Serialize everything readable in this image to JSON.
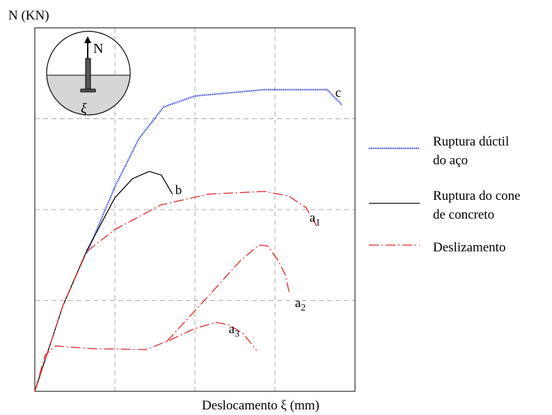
{
  "chart_data": {
    "type": "line",
    "ylabel": "N (KN)",
    "xlabel": "Deslocamento ξ (mm)",
    "xlim": [
      0,
      4
    ],
    "ylim": [
      0,
      4
    ],
    "xgrid": [
      1,
      2,
      3
    ],
    "ygrid": [
      1,
      2,
      3
    ],
    "inset_labels": [
      "N",
      "ξ"
    ],
    "series": [
      {
        "name": "Ruptura dúctil\ndo aço",
        "color": "#2a3cd8",
        "style": "wavy",
        "curves": [
          {
            "label": "c",
            "sub": null,
            "x": [
              0.65,
              1.0,
              1.3,
              1.61,
              2.0,
              2.87,
              3.65,
              3.84
            ],
            "y": [
              1.52,
              2.25,
              2.78,
              3.13,
              3.25,
              3.32,
              3.32,
              3.15
            ]
          }
        ]
      },
      {
        "name": "Ruptura do cone\nde concreto",
        "color": "#000000",
        "style": "solid",
        "curves": [
          {
            "label": "b",
            "sub": null,
            "x": [
              0,
              0.35,
              0.65,
              1.0,
              1.22,
              1.43,
              1.58,
              1.72
            ],
            "y": [
              0,
              0.94,
              1.55,
              2.13,
              2.34,
              2.42,
              2.38,
              2.17
            ]
          }
        ]
      },
      {
        "name": "Deslizamento",
        "color": "#e02020",
        "style": "dashdot",
        "curves": [
          {
            "label": "a",
            "sub": "1",
            "x": [
              0,
              0.35,
              0.65,
              1.0,
              1.57,
              2.17,
              2.87,
              3.17,
              3.39,
              3.52
            ],
            "y": [
              0,
              0.94,
              1.54,
              1.78,
              2.05,
              2.17,
              2.2,
              2.15,
              2.02,
              1.82
            ]
          },
          {
            "label": "a",
            "sub": "2",
            "x": [
              1.65,
              2.17,
              2.57,
              2.8,
              2.91,
              3.04,
              3.13,
              3.18
            ],
            "y": [
              0.55,
              1.05,
              1.44,
              1.61,
              1.6,
              1.44,
              1.28,
              1.08
            ]
          },
          {
            "label": "a",
            "sub": "3",
            "x": [
              0,
              0.13,
              0.26,
              0.7,
              1.39,
              1.65,
              2.0,
              2.26,
              2.43,
              2.61,
              2.77
            ],
            "y": [
              0,
              0.4,
              0.5,
              0.47,
              0.46,
              0.55,
              0.69,
              0.76,
              0.73,
              0.63,
              0.45
            ]
          }
        ]
      }
    ]
  }
}
